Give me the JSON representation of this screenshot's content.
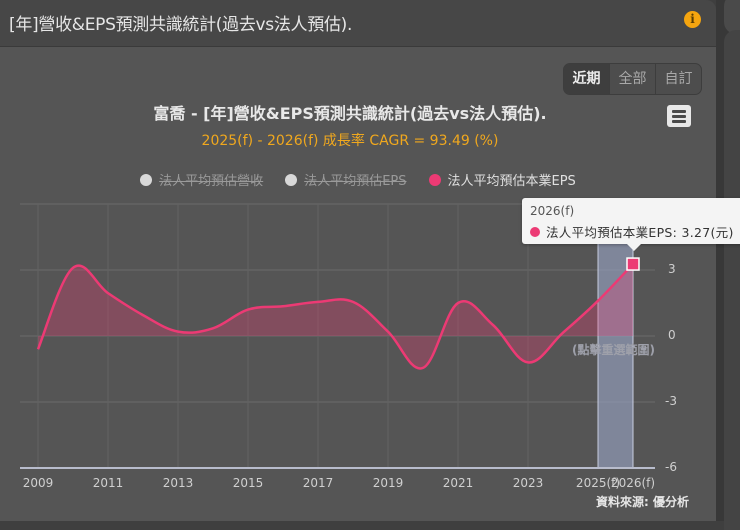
{
  "header": {
    "title": "[年]營收&EPS預測共識統計(過去vs法人預估).",
    "info_icon": "info-icon"
  },
  "range_buttons": [
    {
      "label": "近期",
      "active": true
    },
    {
      "label": "全部",
      "active": false
    },
    {
      "label": "自訂",
      "active": false
    }
  ],
  "menu_icon": "hamburger-menu-icon",
  "chart": {
    "title": "富喬 - [年]營收&EPS預測共識統計(過去vs法人預估).",
    "subtitle": "2025(f) - 2026(f) 成長率 CAGR = 93.49 (%)",
    "legend": [
      {
        "label": "法人平均預估營收",
        "color": "#d8d8d8",
        "visible": false
      },
      {
        "label": "法人平均預估EPS",
        "color": "#d8d8d8",
        "visible": false
      },
      {
        "label": "法人平均預估本業EPS",
        "color": "#ec3a74",
        "visible": true
      }
    ],
    "reset_zoom_label": "(點擊重選範圍)",
    "source_label": "資料來源: 優分析",
    "tooltip": {
      "header": "2026(f)",
      "series": "法人平均預估本業EPS",
      "value_text": "3.27(元)",
      "line": "法人平均預估本業EPS: 3.27(元)"
    }
  },
  "colors": {
    "series": "#ec3a74",
    "subtitle": "#f0a81e",
    "highlight_band": "#9ba6c8",
    "info": "#f5a50f"
  },
  "chart_data": {
    "type": "area",
    "title": "富喬 - [年]營收&EPS預測共識統計(過去vs法人預估).",
    "subtitle": "2025(f) - 2026(f) 成長率 CAGR = 93.49 (%)",
    "xlabel": "",
    "ylabel": "",
    "x": [
      "2009",
      "2010",
      "2011",
      "2012",
      "2013",
      "2014",
      "2015",
      "2016",
      "2017",
      "2018",
      "2019",
      "2020",
      "2021",
      "2022",
      "2023",
      "2024",
      "2025(f)",
      "2026(f)"
    ],
    "x_tick_labels": [
      "2009",
      "2011",
      "2013",
      "2015",
      "2017",
      "2019",
      "2021",
      "2023",
      "2025(f)",
      "2026(f)"
    ],
    "series": [
      {
        "name": "法人平均預估本業EPS",
        "values": [
          -0.6,
          3.1,
          1.95,
          0.95,
          0.2,
          0.35,
          1.2,
          1.35,
          1.55,
          1.55,
          0.2,
          -1.45,
          1.5,
          0.5,
          -1.2,
          0.15,
          1.6,
          3.27
        ],
        "visible": true
      },
      {
        "name": "法人平均預估營收",
        "values": [],
        "visible": false
      },
      {
        "name": "法人平均預估EPS",
        "values": [],
        "visible": false
      }
    ],
    "ylim": [
      -6,
      6
    ],
    "y_ticks": [
      -6,
      -3,
      0,
      3,
      6
    ],
    "grid": true,
    "legend_position": "top",
    "highlight_range": [
      "2025(f)",
      "2026(f)"
    ],
    "annotations": [
      "2026(f) 法人平均預估本業EPS: 3.27(元)"
    ]
  }
}
